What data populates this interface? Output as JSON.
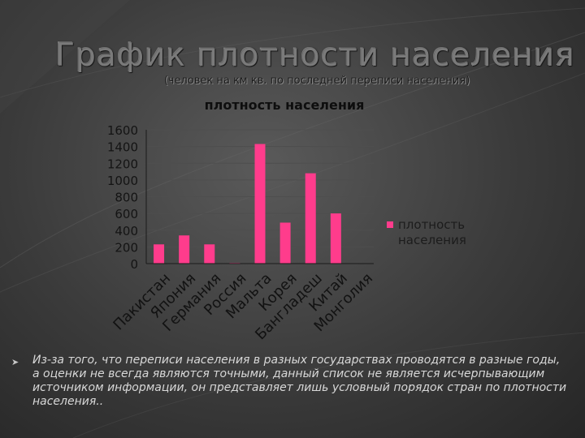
{
  "slide": {
    "title": "График плотности населения",
    "subtitle": "(человек на км кв. по последней переписи населения)",
    "note": "Из-за того, что переписи населения в разных государствах проводятся в разные годы, а оценки не всегда являются точными, данный список не является исчерпывающим источником информации, он представляет лишь условный порядок стран по плотности населения.."
  },
  "colors": {
    "bar": "#ff3c8c",
    "background": "#3b3b3b",
    "text_dark": "#111111"
  },
  "chart_data": {
    "type": "bar",
    "title": "плотность населения",
    "categories": [
      "Пакистан",
      "Япония",
      "Германия",
      "Россия",
      "Мальта",
      "Корея",
      "Бангладеш",
      "Китай",
      "Монголия"
    ],
    "series": [
      {
        "name": "плотность населения",
        "values": [
          230,
          337,
          230,
          8,
          1430,
          490,
          1080,
          600,
          2
        ]
      }
    ],
    "ylim": [
      0,
      1600
    ],
    "yticks": [
      0,
      200,
      400,
      600,
      800,
      1000,
      1200,
      1400,
      1600
    ],
    "grid": true,
    "legend": "right"
  }
}
